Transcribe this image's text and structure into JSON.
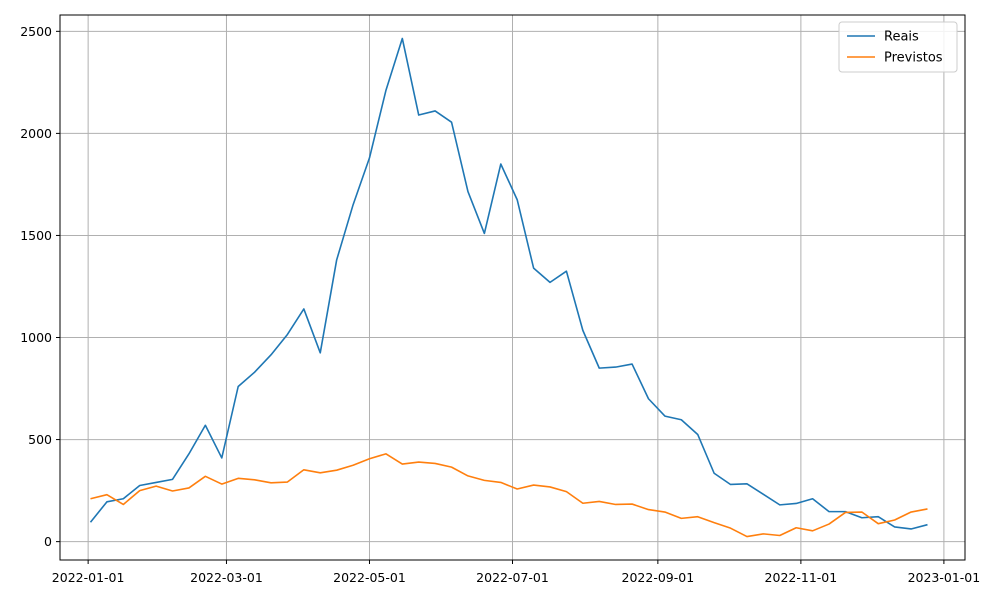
{
  "chart_data": {
    "type": "line",
    "xaxis_type": "date",
    "xlim": [
      "2021-12-20",
      "2023-01-10"
    ],
    "ylim": [
      -90,
      2580
    ],
    "grid": true,
    "legend_position": "top-right",
    "x_ticks": [
      {
        "date": "2022-01-01",
        "label": "2022-01-01"
      },
      {
        "date": "2022-03-01",
        "label": "2022-03-01"
      },
      {
        "date": "2022-05-01",
        "label": "2022-05-01"
      },
      {
        "date": "2022-07-01",
        "label": "2022-07-01"
      },
      {
        "date": "2022-09-01",
        "label": "2022-09-01"
      },
      {
        "date": "2022-11-01",
        "label": "2022-11-01"
      },
      {
        "date": "2023-01-01",
        "label": "2023-01-01"
      }
    ],
    "y_ticks": [
      {
        "value": 0,
        "label": "0"
      },
      {
        "value": 500,
        "label": "500"
      },
      {
        "value": 1000,
        "label": "1000"
      },
      {
        "value": 1500,
        "label": "1500"
      },
      {
        "value": 2000,
        "label": "2000"
      },
      {
        "value": 2500,
        "label": "2500"
      }
    ],
    "x": [
      "2022-01-02",
      "2022-01-09",
      "2022-01-16",
      "2022-01-23",
      "2022-01-30",
      "2022-02-06",
      "2022-02-13",
      "2022-02-20",
      "2022-02-27",
      "2022-03-06",
      "2022-03-13",
      "2022-03-20",
      "2022-03-27",
      "2022-04-03",
      "2022-04-10",
      "2022-04-17",
      "2022-04-24",
      "2022-05-01",
      "2022-05-08",
      "2022-05-15",
      "2022-05-22",
      "2022-05-29",
      "2022-06-05",
      "2022-06-12",
      "2022-06-19",
      "2022-06-26",
      "2022-07-03",
      "2022-07-10",
      "2022-07-17",
      "2022-07-24",
      "2022-07-31",
      "2022-08-07",
      "2022-08-14",
      "2022-08-21",
      "2022-08-28",
      "2022-09-04",
      "2022-09-11",
      "2022-09-18",
      "2022-09-25",
      "2022-10-02",
      "2022-10-09",
      "2022-10-16",
      "2022-10-23",
      "2022-10-30",
      "2022-11-06",
      "2022-11-13",
      "2022-11-20",
      "2022-11-27",
      "2022-12-04",
      "2022-12-11",
      "2022-12-18",
      "2022-12-25"
    ],
    "series": [
      {
        "name": "Reais",
        "color": "#1f77b4",
        "values": [
          95,
          195,
          210,
          275,
          290,
          305,
          430,
          570,
          410,
          760,
          830,
          915,
          1015,
          1140,
          925,
          1380,
          1650,
          1880,
          2210,
          2465,
          2090,
          2110,
          2055,
          1715,
          1510,
          1850,
          1675,
          1340,
          1270,
          1325,
          1035,
          850,
          855,
          870,
          700,
          615,
          597,
          525,
          335,
          280,
          283,
          232,
          180,
          187,
          210,
          147,
          147,
          117,
          122,
          72,
          62,
          83
        ]
      },
      {
        "name": "Previstos",
        "color": "#ff7f0e",
        "values": [
          210,
          230,
          182,
          250,
          272,
          248,
          263,
          320,
          282,
          310,
          303,
          288,
          292,
          352,
          337,
          350,
          374,
          406,
          430,
          380,
          390,
          383,
          365,
          322,
          300,
          290,
          258,
          277,
          268,
          245,
          188,
          197,
          182,
          184,
          157,
          145,
          114,
          122,
          93,
          66,
          25,
          38,
          30,
          68,
          53,
          86,
          143,
          145,
          88,
          106,
          145,
          160
        ]
      }
    ]
  },
  "colors": {
    "grid": "#b0b0b0",
    "axes": "#000000",
    "background": "#ffffff"
  }
}
